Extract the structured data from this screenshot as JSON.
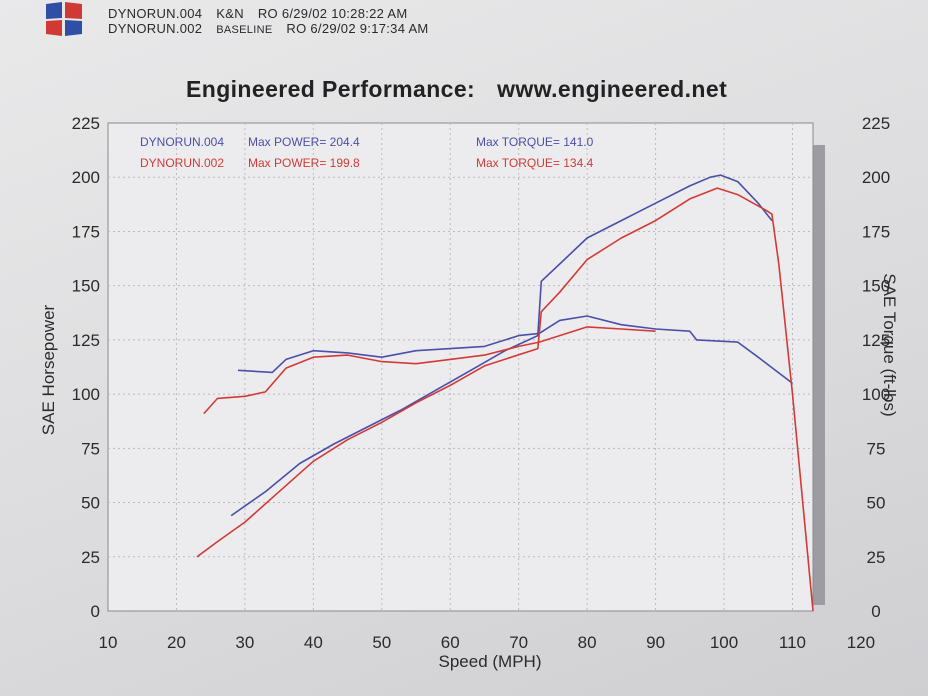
{
  "header": {
    "runs": [
      {
        "file": "DYNORUN.004",
        "tag": "K&N",
        "info": "RO 6/29/02 10:28:22 AM"
      },
      {
        "file": "DYNORUN.002",
        "tag": "BASELINE",
        "info": "RO 6/29/02 9:17:34 AM"
      }
    ]
  },
  "title": {
    "text": "Engineered Performance:",
    "url": "www.engineered.net"
  },
  "colors": {
    "run004": "#4a4fa8",
    "run002": "#d33a36"
  },
  "chart_data": {
    "type": "line",
    "xlabel": "Speed (MPH)",
    "ylabel": "SAE Horsepower",
    "y2label": "SAE Torque (ft-lbs)",
    "xlim": [
      10,
      120
    ],
    "ylim": [
      0,
      225
    ],
    "y2lim": [
      0,
      225
    ],
    "xticks": [
      "10",
      "20",
      "30",
      "40",
      "50",
      "60",
      "70",
      "80",
      "90",
      "100",
      "110",
      "120"
    ],
    "yticks": [
      "0",
      "25",
      "50",
      "75",
      "100",
      "125",
      "150",
      "175",
      "200",
      "225"
    ],
    "y2ticks": [
      "0",
      "25",
      "50",
      "75",
      "100",
      "125",
      "150",
      "175",
      "200",
      "225"
    ],
    "grid": true,
    "legend": {
      "lines": [
        {
          "run": "DYNORUN.004",
          "power": "Max POWER= 204.4",
          "torque": "Max TORQUE= 141.0"
        },
        {
          "run": "DYNORUN.002",
          "power": "Max POWER= 199.8",
          "torque": "Max TORQUE= 134.4"
        }
      ]
    },
    "series": [
      {
        "name": "DYNORUN.004",
        "kind": "power",
        "x": [
          28,
          33,
          38,
          43,
          48,
          53,
          58,
          63,
          68,
          72.8,
          73.3,
          76,
          80,
          85,
          90,
          95,
          98,
          99.5,
          102,
          105,
          107
        ],
        "y": [
          44,
          55,
          68,
          77,
          85,
          93,
          102,
          111,
          120,
          127,
          152,
          160,
          172,
          180,
          188,
          196,
          200,
          201,
          198,
          188,
          180
        ]
      },
      {
        "name": "DYNORUN.004",
        "kind": "torque",
        "x": [
          29,
          34,
          36,
          40,
          45,
          50,
          55,
          60,
          65,
          70,
          73,
          76,
          80,
          85,
          90,
          95,
          96,
          102,
          105,
          110
        ],
        "y": [
          111,
          110,
          116,
          120,
          119,
          117,
          120,
          121,
          122,
          127,
          128,
          134,
          136,
          132,
          130,
          129,
          125,
          124,
          117,
          105
        ]
      },
      {
        "name": "DYNORUN.002",
        "kind": "power",
        "x": [
          23,
          26,
          30,
          35,
          40,
          45,
          50,
          55,
          60,
          65,
          72.8,
          73.3,
          76,
          80,
          85,
          90,
          95,
          99,
          102,
          106,
          107,
          108,
          110,
          113
        ],
        "y": [
          25,
          32,
          41,
          55,
          69,
          79,
          87,
          96,
          104,
          113,
          121,
          138,
          147,
          162,
          172,
          180,
          190,
          195,
          192,
          185,
          183,
          160,
          100,
          0
        ]
      },
      {
        "name": "DYNORUN.002",
        "kind": "torque",
        "x": [
          24,
          26,
          30,
          33,
          36,
          40,
          45,
          50,
          55,
          60,
          65,
          70,
          73,
          76,
          80,
          85,
          90
        ],
        "y": [
          91,
          98,
          99,
          101,
          112,
          117,
          118,
          115,
          114,
          116,
          118,
          122,
          124,
          127,
          131,
          130,
          129
        ]
      }
    ]
  }
}
